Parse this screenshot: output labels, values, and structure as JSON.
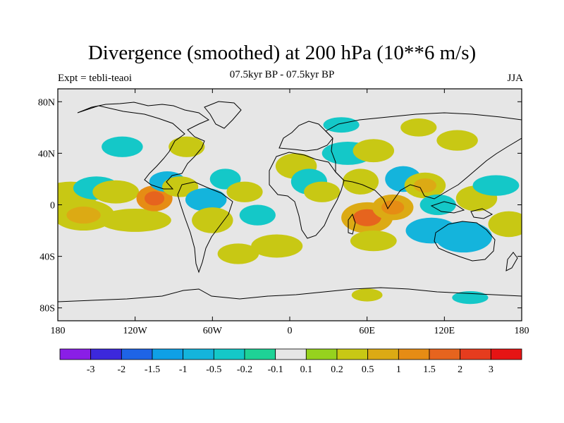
{
  "title": "Divergence (smoothed) at 200 hPa (10**6 m/s)",
  "subtitle": "07.5kyr BP - 07.5kyr BP",
  "left_label": "Expt = tebli-teaoi",
  "right_label": "JJA",
  "lat_ticks": [
    {
      "label": "80N",
      "value": 80
    },
    {
      "label": "40N",
      "value": 40
    },
    {
      "label": "0",
      "value": 0
    },
    {
      "label": "40S",
      "value": -40
    },
    {
      "label": "80S",
      "value": -80
    }
  ],
  "lon_ticks": [
    {
      "label": "180",
      "value": -180
    },
    {
      "label": "120W",
      "value": -120
    },
    {
      "label": "60W",
      "value": -60
    },
    {
      "label": "0",
      "value": 0
    },
    {
      "label": "60E",
      "value": 60
    },
    {
      "label": "120E",
      "value": 120
    },
    {
      "label": "180",
      "value": 180
    }
  ],
  "colorbar": {
    "labels": [
      "-3",
      "-2",
      "-1.5",
      "-1",
      "-0.5",
      "-0.2",
      "-0.1",
      "0.1",
      "0.2",
      "0.5",
      "1",
      "1.5",
      "2",
      "3"
    ],
    "colors": [
      "#8a1ee6",
      "#3c28dc",
      "#1e64e6",
      "#0fa0e6",
      "#14b4dc",
      "#14c8c8",
      "#1ed296",
      "#e6e6e6",
      "#96d21e",
      "#c8c814",
      "#dcaa14",
      "#e68c14",
      "#e6641e",
      "#e63c1e",
      "#e61414"
    ]
  },
  "chart_data": {
    "type": "map",
    "title": "Divergence (smoothed) at 200 hPa (10**6 m/s)",
    "projection": "cylindrical equidistant",
    "lon_range": [
      -180,
      180
    ],
    "lat_range": [
      -90,
      90
    ],
    "levels": [
      -3,
      -2,
      -1.5,
      -1,
      -0.5,
      -0.2,
      -0.1,
      0.1,
      0.2,
      0.5,
      1,
      1.5,
      2,
      3
    ],
    "regions": [
      {
        "lon": -170,
        "lat": 8,
        "w": 22,
        "h": 10,
        "v": 0.3
      },
      {
        "lon": -150,
        "lat": 13,
        "w": 18,
        "h": 9,
        "v": -0.4
      },
      {
        "lon": -135,
        "lat": 10,
        "w": 18,
        "h": 9,
        "v": 0.3
      },
      {
        "lon": -160,
        "lat": -8,
        "w": 24,
        "h": 12,
        "v": 0.5
      },
      {
        "lon": -120,
        "lat": -12,
        "w": 28,
        "h": 9,
        "v": 0.4
      },
      {
        "lon": -105,
        "lat": 5,
        "w": 14,
        "h": 10,
        "v": 1.2
      },
      {
        "lon": -95,
        "lat": 18,
        "w": 14,
        "h": 8,
        "v": -0.6
      },
      {
        "lon": -85,
        "lat": 14,
        "w": 14,
        "h": 8,
        "v": 0.3
      },
      {
        "lon": -65,
        "lat": 4,
        "w": 16,
        "h": 9,
        "v": -0.5
      },
      {
        "lon": -60,
        "lat": -12,
        "w": 16,
        "h": 10,
        "v": 0.3
      },
      {
        "lon": -50,
        "lat": 20,
        "w": 12,
        "h": 8,
        "v": -0.3
      },
      {
        "lon": -35,
        "lat": 10,
        "w": 14,
        "h": 8,
        "v": 0.3
      },
      {
        "lon": -25,
        "lat": -8,
        "w": 14,
        "h": 8,
        "v": -0.4
      },
      {
        "lon": -40,
        "lat": -38,
        "w": 16,
        "h": 8,
        "v": 0.3
      },
      {
        "lon": -10,
        "lat": -32,
        "w": 20,
        "h": 9,
        "v": 0.3
      },
      {
        "lon": 5,
        "lat": 30,
        "w": 16,
        "h": 10,
        "v": 0.4
      },
      {
        "lon": 15,
        "lat": 18,
        "w": 14,
        "h": 10,
        "v": -0.4
      },
      {
        "lon": 25,
        "lat": 10,
        "w": 14,
        "h": 8,
        "v": 0.3
      },
      {
        "lon": 45,
        "lat": 40,
        "w": 20,
        "h": 9,
        "v": -0.4
      },
      {
        "lon": 65,
        "lat": 42,
        "w": 16,
        "h": 9,
        "v": 0.3
      },
      {
        "lon": 55,
        "lat": 18,
        "w": 14,
        "h": 10,
        "v": 0.3
      },
      {
        "lon": 60,
        "lat": -10,
        "w": 20,
        "h": 12,
        "v": 1.0
      },
      {
        "lon": 80,
        "lat": -2,
        "w": 16,
        "h": 10,
        "v": 0.8
      },
      {
        "lon": 65,
        "lat": -28,
        "w": 18,
        "h": 8,
        "v": 0.4
      },
      {
        "lon": 88,
        "lat": 20,
        "w": 14,
        "h": 10,
        "v": -0.5
      },
      {
        "lon": 105,
        "lat": 15,
        "w": 16,
        "h": 10,
        "v": 0.5
      },
      {
        "lon": 115,
        "lat": 0,
        "w": 14,
        "h": 8,
        "v": -0.4
      },
      {
        "lon": 110,
        "lat": -20,
        "w": 20,
        "h": 10,
        "v": -0.6
      },
      {
        "lon": 135,
        "lat": -25,
        "w": 22,
        "h": 12,
        "v": -0.5
      },
      {
        "lon": 145,
        "lat": 5,
        "w": 16,
        "h": 10,
        "v": 0.4
      },
      {
        "lon": 160,
        "lat": 15,
        "w": 18,
        "h": 8,
        "v": -0.3
      },
      {
        "lon": 170,
        "lat": -15,
        "w": 16,
        "h": 10,
        "v": 0.3
      },
      {
        "lon": 130,
        "lat": 50,
        "w": 16,
        "h": 8,
        "v": 0.3
      },
      {
        "lon": 100,
        "lat": 60,
        "w": 14,
        "h": 7,
        "v": 0.3
      },
      {
        "lon": 40,
        "lat": 62,
        "w": 14,
        "h": 6,
        "v": -0.3
      },
      {
        "lon": -130,
        "lat": 45,
        "w": 16,
        "h": 8,
        "v": -0.3
      },
      {
        "lon": -80,
        "lat": 45,
        "w": 14,
        "h": 8,
        "v": 0.3
      },
      {
        "lon": 60,
        "lat": -70,
        "w": 12,
        "h": 5,
        "v": 0.3
      },
      {
        "lon": 140,
        "lat": -72,
        "w": 14,
        "h": 5,
        "v": -0.3
      }
    ]
  }
}
